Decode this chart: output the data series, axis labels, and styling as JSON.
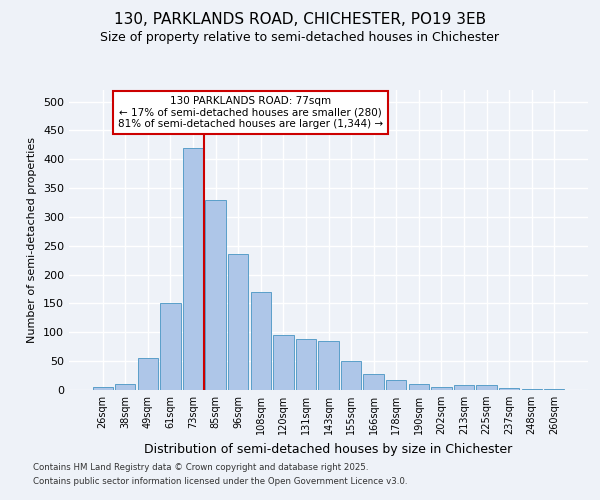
{
  "title1": "130, PARKLANDS ROAD, CHICHESTER, PO19 3EB",
  "title2": "Size of property relative to semi-detached houses in Chichester",
  "xlabel": "Distribution of semi-detached houses by size in Chichester",
  "ylabel": "Number of semi-detached properties",
  "categories": [
    "26sqm",
    "38sqm",
    "49sqm",
    "61sqm",
    "73sqm",
    "85sqm",
    "96sqm",
    "108sqm",
    "120sqm",
    "131sqm",
    "143sqm",
    "155sqm",
    "166sqm",
    "178sqm",
    "190sqm",
    "202sqm",
    "213sqm",
    "225sqm",
    "237sqm",
    "248sqm",
    "260sqm"
  ],
  "values": [
    5,
    10,
    55,
    150,
    420,
    330,
    235,
    170,
    95,
    88,
    85,
    50,
    27,
    18,
    10,
    6,
    8,
    8,
    3,
    2,
    1
  ],
  "bar_color": "#aec6e8",
  "bar_edge_color": "#5a9fc9",
  "ylim": [
    0,
    520
  ],
  "yticks": [
    0,
    50,
    100,
    150,
    200,
    250,
    300,
    350,
    400,
    450,
    500
  ],
  "property_bin_index": 4,
  "annotation_title": "130 PARKLANDS ROAD: 77sqm",
  "annotation_line1": "← 17% of semi-detached houses are smaller (280)",
  "annotation_line2": "81% of semi-detached houses are larger (1,344) →",
  "vline_color": "#cc0000",
  "annotation_box_color": "#ffffff",
  "annotation_box_edge": "#cc0000",
  "footer1": "Contains HM Land Registry data © Crown copyright and database right 2025.",
  "footer2": "Contains public sector information licensed under the Open Government Licence v3.0.",
  "background_color": "#eef2f8",
  "grid_color": "#ffffff"
}
